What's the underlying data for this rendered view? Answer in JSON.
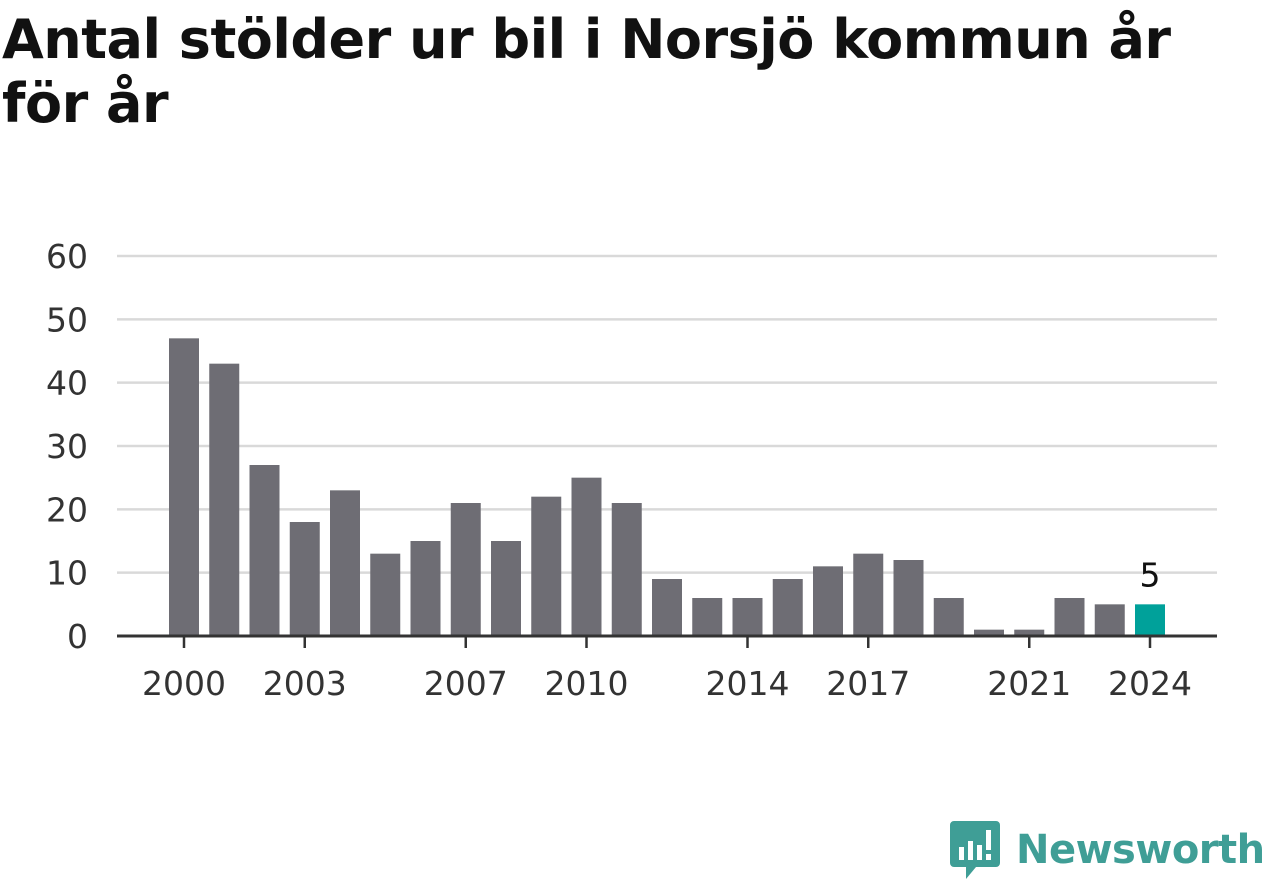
{
  "title": "Antal stölder ur bil i Norsjö kommun år för år",
  "brand": {
    "name": "Newsworthy",
    "color": "#3f9e96"
  },
  "colors": {
    "bar": "#6e6d74",
    "highlight": "#00a19a",
    "grid": "#d9d9d9",
    "axis": "#333333"
  },
  "chart_data": {
    "type": "bar",
    "categories": [
      "2000",
      "2001",
      "2002",
      "2003",
      "2004",
      "2005",
      "2006",
      "2007",
      "2008",
      "2009",
      "2010",
      "2011",
      "2012",
      "2013",
      "2014",
      "2015",
      "2016",
      "2017",
      "2018",
      "2019",
      "2020",
      "2021",
      "2022",
      "2023",
      "2024"
    ],
    "values": [
      47,
      43,
      27,
      18,
      23,
      13,
      15,
      21,
      15,
      22,
      25,
      21,
      9,
      6,
      6,
      9,
      11,
      13,
      12,
      6,
      1,
      1,
      6,
      5,
      5
    ],
    "x_tick_labels": [
      "2000",
      "2003",
      "2007",
      "2010",
      "2014",
      "2017",
      "2021",
      "2024"
    ],
    "y_ticks": [
      0,
      10,
      20,
      30,
      40,
      50,
      60
    ],
    "ylim": [
      0,
      60
    ],
    "highlight": {
      "category": "2024",
      "label": "5"
    },
    "grid": true,
    "xlabel": "",
    "ylabel": ""
  }
}
